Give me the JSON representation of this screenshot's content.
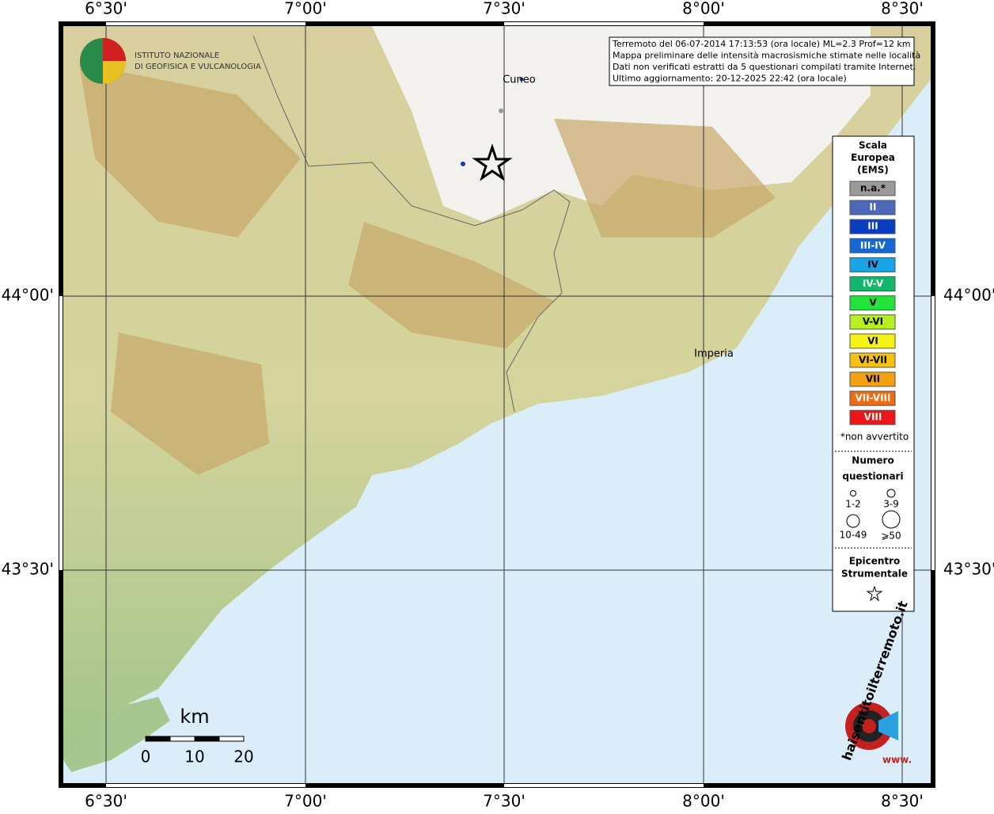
{
  "header": {
    "lines": [
      "Terremoto del 06-07-2014 17:13:53 (ora locale) ML=2.3 Prof=12 km",
      "Mappa preliminare delle intensità macrosismiche stimate nelle località",
      "Dati non verificati estratti da 5 questionari compilati tramite Internet.",
      "Ultimo aggiornamento: 20-12-2025 22:42 (ora locale)"
    ]
  },
  "logo": {
    "line1": "ISTITUTO NAZIONALE",
    "line2": "DI GEOFISICA E VULCANOLOGIA"
  },
  "map": {
    "lon_labels": [
      "6°30'",
      "7°00'",
      "7°30'",
      "8°00'",
      "8°30'"
    ],
    "lat_labels": [
      "44°00'",
      "43°30'"
    ],
    "cities": [
      "Cuneo",
      "Imperia"
    ]
  },
  "scale_bar": {
    "unit": "km",
    "labels": [
      "0",
      "10",
      "20"
    ]
  },
  "legend": {
    "title": [
      "Scala",
      "Europea",
      "(EMS)"
    ],
    "classes": [
      {
        "label": "n.a.*",
        "color": "#9a9a9a"
      },
      {
        "label": "II",
        "color": "#4a69b8"
      },
      {
        "label": "III",
        "color": "#0a3cc1"
      },
      {
        "label": "III-IV",
        "color": "#1567d4"
      },
      {
        "label": "IV",
        "color": "#1aa3e6"
      },
      {
        "label": "IV-V",
        "color": "#12b86a"
      },
      {
        "label": "V",
        "color": "#22e33a"
      },
      {
        "label": "V-VI",
        "color": "#b7f020"
      },
      {
        "label": "VI",
        "color": "#f6f214"
      },
      {
        "label": "VI-VII",
        "color": "#f5c211"
      },
      {
        "label": "VII",
        "color": "#f5a00e"
      },
      {
        "label": "VII-VIII",
        "color": "#f06a10"
      },
      {
        "label": "VIII",
        "color": "#f01515"
      }
    ],
    "note": "*non avvertito",
    "count_title": [
      "Numero",
      "questionari"
    ],
    "count_labels": [
      "1-2",
      "3-9",
      "10-49",
      "⩾50"
    ],
    "epicenter_title": [
      "Epicentro",
      "Strumentale"
    ]
  },
  "site_logo": {
    "text": "haisentitoilterremoto.it",
    "www": "www."
  }
}
